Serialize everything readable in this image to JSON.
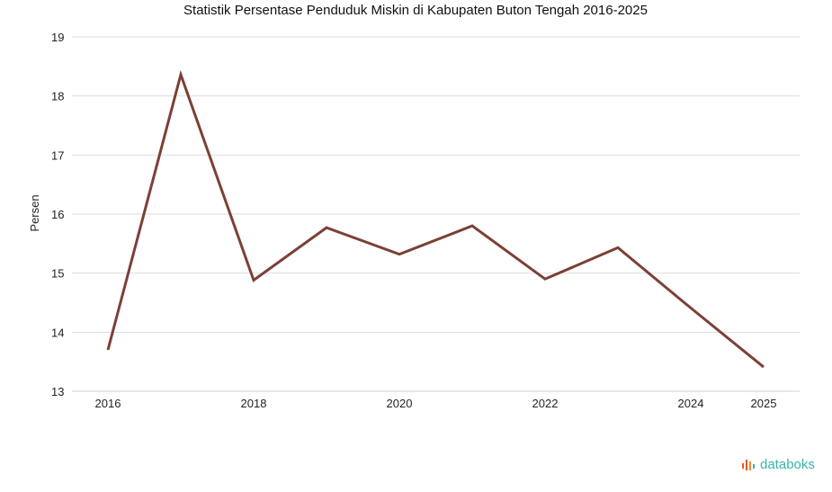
{
  "chart_data": {
    "type": "line",
    "title": "Statistik Persentase Penduduk Miskin di Kabupaten Buton Tengah 2016-2025",
    "ylabel": "Persen",
    "xlabel": "",
    "x": [
      2016,
      2017,
      2018,
      2019,
      2020,
      2021,
      2022,
      2023,
      2024,
      2025
    ],
    "xticks": [
      "2016",
      "2018",
      "2020",
      "2022",
      "2024",
      "2025"
    ],
    "series": [
      {
        "values": [
          13.7,
          18.36,
          14.88,
          15.77,
          15.32,
          15.8,
          14.9,
          15.43,
          14.41,
          13.41
        ]
      }
    ],
    "ylim": [
      13,
      19
    ],
    "yticks": [
      13,
      14,
      15,
      16,
      17,
      18,
      19
    ],
    "grid": true,
    "line_color": "#7b4036"
  },
  "brand": {
    "name": "databoks"
  }
}
